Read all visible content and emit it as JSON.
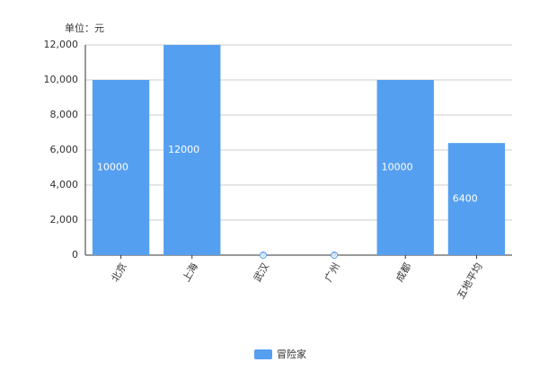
{
  "chart_data": {
    "type": "bar",
    "y_axis_label": "单位：元",
    "categories": [
      "北京",
      "上海",
      "武汉",
      "广州",
      "成都",
      "五地平均"
    ],
    "series": [
      {
        "name": "冒险家",
        "color": "#559ff0",
        "values": [
          10000,
          12000,
          0,
          0,
          10000,
          6400
        ]
      }
    ],
    "ylim": [
      0,
      12000
    ],
    "yticks": [
      0,
      {
        "value": 2000,
        "label": "2,000"
      },
      {
        "value": 4000,
        "label": "4,000"
      },
      {
        "value": 6000,
        "label": "6,000"
      },
      {
        "value": 8000,
        "label": "8,000"
      },
      {
        "value": 10000,
        "label": "10,000"
      },
      {
        "value": 12000,
        "label": "12,000"
      }
    ],
    "grid": true,
    "legend": "bottom"
  }
}
